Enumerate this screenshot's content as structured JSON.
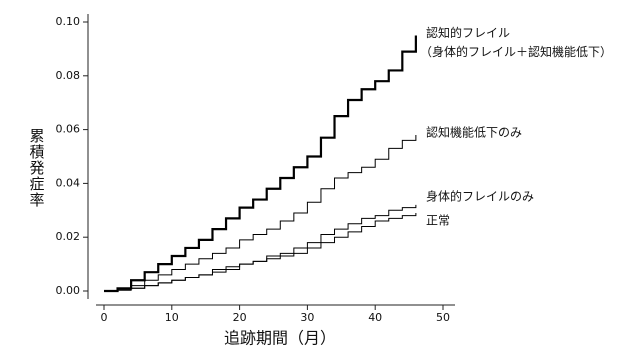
{
  "chart_data": {
    "type": "step",
    "xlabel": "追跡期間（月）",
    "ylabel": "累積発症率",
    "xlim": [
      0,
      50
    ],
    "xticks": [
      0,
      10,
      20,
      30,
      40,
      50
    ],
    "ylim": [
      0,
      0.1
    ],
    "yticks": [
      {
        "value": 0,
        "label": "0.00"
      },
      {
        "value": 0.02,
        "label": "0.02"
      },
      {
        "value": 0.04,
        "label": "0.04"
      },
      {
        "value": 0.06,
        "label": "0.06"
      },
      {
        "value": 0.08,
        "label": "0.08"
      },
      {
        "value": 0.1,
        "label": "0.10"
      }
    ],
    "x": [
      0,
      2,
      4,
      6,
      8,
      10,
      12,
      14,
      16,
      18,
      20,
      22,
      24,
      26,
      28,
      30,
      32,
      34,
      36,
      38,
      40,
      42,
      44,
      46
    ],
    "series": [
      {
        "name": "認知的フレイル",
        "subname": "（身体的フレイル＋認知機能低下）",
        "color": "#000000",
        "line_width": 2.2,
        "values": [
          0,
          0.001,
          0.004,
          0.007,
          0.01,
          0.013,
          0.016,
          0.019,
          0.023,
          0.027,
          0.031,
          0.034,
          0.038,
          0.042,
          0.046,
          0.05,
          0.057,
          0.065,
          0.071,
          0.075,
          0.078,
          0.082,
          0.089,
          0.095
        ]
      },
      {
        "name": "認知機能低下のみ",
        "color": "#000000",
        "line_width": 1,
        "values": [
          0,
          0.001,
          0.002,
          0.004,
          0.006,
          0.008,
          0.01,
          0.012,
          0.014,
          0.016,
          0.019,
          0.021,
          0.023,
          0.026,
          0.029,
          0.033,
          0.038,
          0.042,
          0.044,
          0.046,
          0.049,
          0.053,
          0.056,
          0.058
        ]
      },
      {
        "name": "身体的フレイルのみ",
        "color": "#000000",
        "line_width": 1,
        "values": [
          0,
          0.0005,
          0.001,
          0.002,
          0.003,
          0.004,
          0.005,
          0.006,
          0.007,
          0.008,
          0.01,
          0.011,
          0.013,
          0.014,
          0.016,
          0.018,
          0.021,
          0.023,
          0.025,
          0.027,
          0.028,
          0.03,
          0.031,
          0.032
        ]
      },
      {
        "name": "正常",
        "color": "#000000",
        "line_width": 1,
        "values": [
          0,
          0.0003,
          0.001,
          0.002,
          0.003,
          0.004,
          0.005,
          0.006,
          0.008,
          0.009,
          0.01,
          0.011,
          0.012,
          0.013,
          0.014,
          0.016,
          0.018,
          0.02,
          0.022,
          0.024,
          0.026,
          0.027,
          0.028,
          0.029
        ]
      }
    ]
  }
}
